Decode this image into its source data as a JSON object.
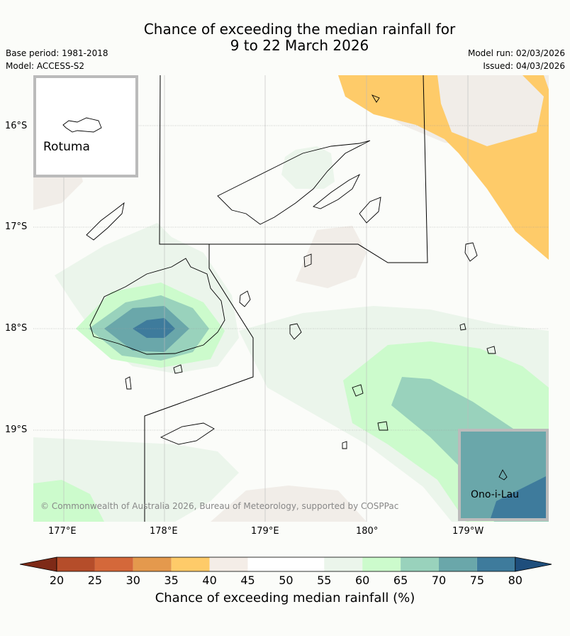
{
  "title_line1": "Chance of exceeding the median rainfall for",
  "title_line2": "9 to 22 March 2026",
  "base_period": "Base period: 1981-2018",
  "model": "Model: ACCESS-S2",
  "model_run": "Model run: 02/03/2026",
  "issued": "Issued: 04/03/2026",
  "lat_labels": [
    "16°S",
    "17°S",
    "18°S",
    "19°S"
  ],
  "lon_labels": [
    "177°E",
    "178°E",
    "179°E",
    "180°",
    "179°W"
  ],
  "inset_rotuma": "Rotuma",
  "inset_onoilau": "Ono-i-Lau",
  "copyright": "© Commonwealth of Australia 2026, Bureau of Meteorology, supported by COSPPac",
  "colorbar": {
    "ticks": [
      "20",
      "25",
      "30",
      "35",
      "40",
      "45",
      "50",
      "55",
      "60",
      "65",
      "70",
      "75",
      "80"
    ],
    "colors": [
      "#7e2a17",
      "#b54d2a",
      "#d4683a",
      "#e4994d",
      "#fecb69",
      "#f4ede7",
      "#ffffff",
      "#ffffff",
      "#ebf5eb",
      "#ccfbcc",
      "#99d2bc",
      "#6aa7aa",
      "#3e7b9c",
      "#1e4e7c"
    ],
    "title": "Chance of exceeding median rainfall (%)"
  }
}
